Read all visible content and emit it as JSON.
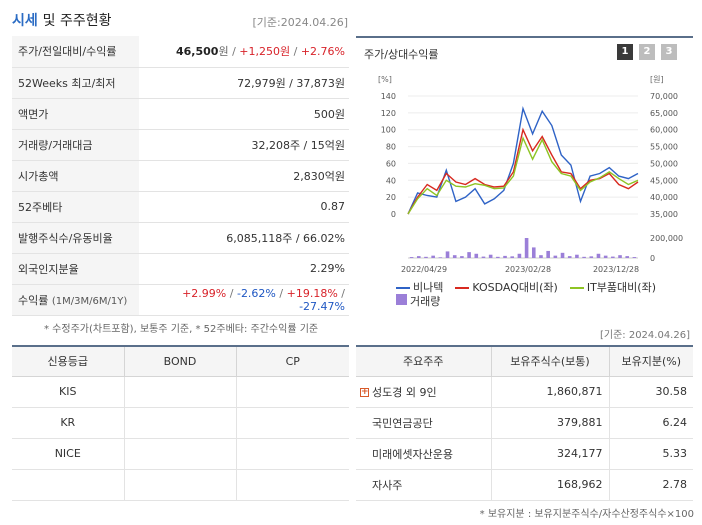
{
  "header": {
    "title_accent": "시세",
    "title_rest": "및 주주현황",
    "date": "[기준:2024.04.26]"
  },
  "quote": {
    "price_label": "주가/전일대비/수익률",
    "price": "46,500",
    "won": "원",
    "change": "+1,250원",
    "change_pct": "+2.76%",
    "w52_label": "52Weeks 최고/최저",
    "w52": "72,979원 / 37,873원",
    "par_label": "액면가",
    "par": "500원",
    "vol_label": "거래량/거래대금",
    "vol": "32,208주 / 15억원",
    "mcap_label": "시가총액",
    "mcap": "2,830억원",
    "beta_label": "52주베타",
    "beta": "0.87",
    "shares_label": "발행주식수/유동비율",
    "shares": "6,085,118주 / 66.02%",
    "foreign_label": "외국인지분율",
    "foreign": "2.29%",
    "ret_label": "수익률",
    "ret_sub": "(1M/3M/6M/1Y)",
    "ret_1m": "+2.99%",
    "ret_3m": "-2.62%",
    "ret_6m": "+19.18%",
    "ret_1y": "-27.47%"
  },
  "note1": "* 수정주가(차트포함), 보통주 기준, * 52주베타: 주간수익률 기준",
  "chart_box": {
    "title": "주가/상대수익률",
    "tabs": [
      "1",
      "2",
      "3"
    ]
  },
  "chart_data": {
    "type": "line",
    "left_unit": "[%]",
    "right_unit": "[원]",
    "left_ticks": [
      "140",
      "120",
      "100",
      "80",
      "60",
      "40",
      "20",
      "0"
    ],
    "right_ticks": [
      "70,000",
      "65,000",
      "60,000",
      "55,000",
      "50,000",
      "45,000",
      "40,000",
      "35,000"
    ],
    "volume_ticks": [
      "200,000",
      "0"
    ],
    "x_labels": [
      "2022/04/29",
      "2023/02/28",
      "2023/12/28"
    ],
    "ylim_left": [
      0,
      140
    ],
    "series": [
      {
        "name": "비나텍",
        "color": "#2f63c6",
        "values": [
          0,
          25,
          22,
          20,
          52,
          15,
          20,
          30,
          12,
          18,
          28,
          60,
          125,
          95,
          122,
          105,
          70,
          58,
          15,
          45,
          48,
          55,
          45,
          42,
          48
        ]
      },
      {
        "name": "KOSDAQ대비(좌)",
        "color": "#d82a20",
        "values": [
          0,
          20,
          35,
          28,
          48,
          38,
          35,
          42,
          35,
          32,
          33,
          50,
          100,
          75,
          92,
          70,
          50,
          48,
          30,
          40,
          42,
          48,
          35,
          30,
          38
        ]
      },
      {
        "name": "IT부품대비(좌)",
        "color": "#8ec424",
        "values": [
          0,
          18,
          30,
          22,
          40,
          33,
          32,
          36,
          34,
          30,
          31,
          45,
          90,
          65,
          88,
          62,
          48,
          45,
          28,
          38,
          43,
          50,
          42,
          35,
          40
        ]
      }
    ],
    "volume": {
      "name": "거래량",
      "color": "#9b7fd8",
      "values": [
        4,
        8,
        5,
        10,
        3,
        28,
        12,
        8,
        25,
        18,
        6,
        14,
        5,
        9,
        7,
        18,
        85,
        45,
        12,
        30,
        10,
        22,
        8,
        14,
        5,
        7,
        18,
        10,
        6,
        12,
        8,
        4
      ]
    }
  },
  "date2": "[기준: 2024.04.26]",
  "credit": {
    "headers": [
      "신용등급",
      "BOND",
      "CP"
    ],
    "rows": [
      [
        "KIS",
        "",
        ""
      ],
      [
        "KR",
        "",
        ""
      ],
      [
        "NICE",
        "",
        ""
      ],
      [
        "",
        "",
        ""
      ]
    ]
  },
  "major": {
    "headers": [
      "주요주주",
      "보유주식수(보통)",
      "보유지분(%)"
    ],
    "rows": [
      [
        "성도경 외 9인",
        "1,860,871",
        "30.58"
      ],
      [
        "국민연금공단",
        "379,881",
        "6.24"
      ],
      [
        "미래에셋자산운용",
        "324,177",
        "5.33"
      ],
      [
        "자사주",
        "168,962",
        "2.78"
      ]
    ]
  },
  "note2": "* 보유지분 : 보유지분주식수/자수산정주식수×100"
}
